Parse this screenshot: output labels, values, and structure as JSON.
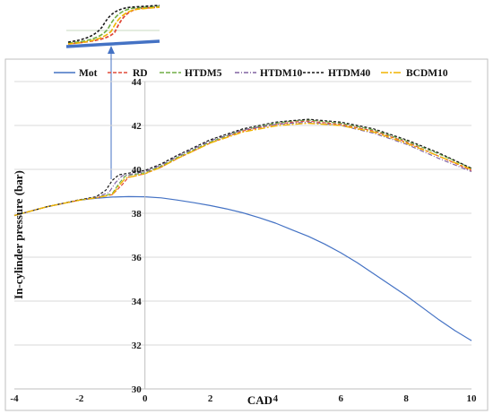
{
  "chart_data": {
    "type": "line",
    "title": "",
    "xlabel": "CAD",
    "ylabel": "In-cylinder pressure (bar)",
    "xlim": [
      -4,
      10
    ],
    "ylim": [
      30,
      44
    ],
    "x_ticks": [
      -4,
      -2,
      0,
      2,
      4,
      6,
      8,
      10
    ],
    "y_ticks": [
      30,
      32,
      34,
      36,
      38,
      40,
      42,
      44
    ],
    "grid": "horizontal",
    "legend_position": "top",
    "inset": "zoomed view of combustion onset near -1 CAD with arrow",
    "series": [
      {
        "name": "Mot",
        "color": "#4472c4",
        "dash": "solid",
        "width": 1.2,
        "x": [
          -4,
          -3,
          -2,
          -1.5,
          -1,
          -0.5,
          0,
          0.5,
          1,
          1.5,
          2,
          2.5,
          3,
          3.5,
          4,
          4.5,
          5,
          5.5,
          6,
          6.5,
          7,
          7.5,
          8,
          8.5,
          9,
          9.5,
          10
        ],
        "values": [
          37.9,
          38.3,
          38.6,
          38.68,
          38.74,
          38.76,
          38.75,
          38.7,
          38.6,
          38.48,
          38.35,
          38.2,
          38.02,
          37.8,
          37.55,
          37.25,
          36.95,
          36.6,
          36.2,
          35.75,
          35.25,
          34.75,
          34.25,
          33.7,
          33.15,
          32.65,
          32.2
        ]
      },
      {
        "name": "RD",
        "color": "#e04a3a",
        "dash": "4,2",
        "width": 1.2,
        "x": [
          -4,
          -3,
          -2,
          -1.5,
          -1,
          -0.7,
          -0.5,
          0,
          0.5,
          1,
          1.5,
          2,
          3,
          4,
          4.5,
          5,
          6,
          7,
          8,
          9,
          10
        ],
        "values": [
          37.9,
          38.3,
          38.6,
          38.7,
          38.85,
          39.3,
          39.65,
          39.8,
          40.1,
          40.5,
          40.85,
          41.2,
          41.75,
          42.05,
          42.15,
          42.2,
          42.05,
          41.75,
          41.25,
          40.6,
          39.95
        ]
      },
      {
        "name": "HTDM5",
        "color": "#70ad47",
        "dash": "5,2",
        "width": 1.2,
        "x": [
          -4,
          -3,
          -2,
          -1.5,
          -1,
          -0.8,
          -0.6,
          0,
          0.5,
          1,
          1.5,
          2,
          3,
          4,
          4.5,
          5,
          6,
          7,
          8,
          9,
          10
        ],
        "values": [
          37.9,
          38.3,
          38.6,
          38.7,
          38.9,
          39.35,
          39.7,
          39.85,
          40.15,
          40.55,
          40.9,
          41.25,
          41.8,
          42.1,
          42.2,
          42.25,
          42.1,
          41.8,
          41.3,
          40.7,
          40.05
        ]
      },
      {
        "name": "HTDM10",
        "color": "#8064a2",
        "dash": "5,2,1,2",
        "width": 1.2,
        "x": [
          -4,
          -3,
          -2,
          -1.5,
          -1.1,
          -0.9,
          -0.7,
          0,
          0.5,
          1,
          1.5,
          2,
          3,
          4,
          4.5,
          5,
          6,
          7,
          8,
          9,
          10
        ],
        "values": [
          37.9,
          38.3,
          38.6,
          38.72,
          38.95,
          39.4,
          39.7,
          39.9,
          40.2,
          40.6,
          40.95,
          41.3,
          41.8,
          42.05,
          42.1,
          42.15,
          42.0,
          41.65,
          41.15,
          40.5,
          39.9
        ]
      },
      {
        "name": "HTDM40",
        "color": "#1a1a1a",
        "dash": "3,2",
        "width": 1.2,
        "x": [
          -4,
          -3,
          -2,
          -1.5,
          -1.2,
          -1.0,
          -0.8,
          0,
          0.5,
          1,
          1.5,
          2,
          3,
          4,
          4.5,
          5,
          6,
          7,
          8,
          9,
          10
        ],
        "values": [
          37.9,
          38.3,
          38.62,
          38.75,
          39.05,
          39.5,
          39.75,
          39.95,
          40.25,
          40.65,
          41.0,
          41.35,
          41.85,
          42.15,
          42.22,
          42.28,
          42.15,
          41.85,
          41.35,
          40.75,
          40.05
        ]
      },
      {
        "name": "BCDM10",
        "color": "#f0b400",
        "dash": "8,2,2,2",
        "width": 1.4,
        "x": [
          -4,
          -3,
          -2,
          -1.5,
          -1,
          -0.8,
          -0.6,
          0,
          0.5,
          1,
          1.5,
          2,
          3,
          4,
          4.5,
          5,
          6,
          7,
          8,
          9,
          10
        ],
        "values": [
          37.9,
          38.3,
          38.6,
          38.7,
          38.85,
          39.25,
          39.6,
          39.8,
          40.1,
          40.5,
          40.85,
          41.2,
          41.7,
          41.98,
          42.05,
          42.1,
          42.0,
          41.7,
          41.2,
          40.6,
          40.0
        ]
      }
    ]
  }
}
